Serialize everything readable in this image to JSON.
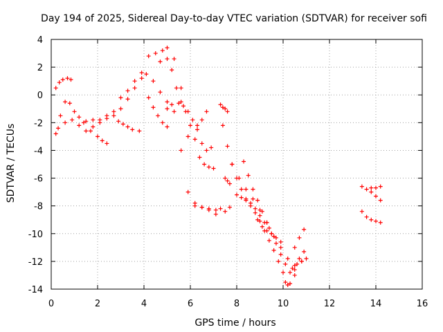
{
  "chart_data": {
    "type": "scatter",
    "title": "Day 194 of 2025, Sidereal Day-to-day VTEC variation (SDTVAR) for receiver sofi",
    "xlabel": "GPS time / hours",
    "ylabel": "SDTVAR / TECUs",
    "xlim": [
      0,
      16
    ],
    "ylim": [
      -14,
      4
    ],
    "xticks": [
      0,
      2,
      4,
      6,
      8,
      10,
      12,
      14,
      16
    ],
    "yticks": [
      -14,
      -12,
      -10,
      -8,
      -6,
      -4,
      -2,
      0,
      2,
      4
    ],
    "grid": true,
    "marker": "+",
    "color": "#ff0000",
    "series": [
      {
        "name": "s1",
        "x": [
          0.2,
          0.4,
          0.6,
          0.8,
          1.0,
          1.2,
          1.5,
          1.8,
          2.1,
          2.4,
          2.7,
          3.0,
          3.3,
          3.6,
          3.9,
          4.2,
          4.5,
          4.8,
          5.0,
          5.3,
          5.6,
          5.9,
          6.2,
          6.5,
          6.8,
          7.1
        ],
        "y": [
          -2.8,
          -1.5,
          -0.5,
          -0.6,
          -1.2,
          -1.6,
          -1.9,
          -1.8,
          -1.8,
          -1.5,
          -1.2,
          -0.2,
          0.3,
          1.0,
          1.6,
          2.8,
          3.0,
          3.2,
          3.4,
          2.6,
          0.5,
          -3.0,
          -7.8,
          -8.1,
          -8.3,
          -8.6
        ]
      },
      {
        "name": "s2",
        "x": [
          0.2,
          0.35,
          0.5,
          0.7,
          0.85
        ],
        "y": [
          0.5,
          0.9,
          1.1,
          1.2,
          1.1
        ]
      },
      {
        "name": "s3",
        "x": [
          0.3,
          0.6,
          0.9,
          1.2,
          1.5,
          1.8,
          2.1,
          2.4,
          2.7,
          3.0,
          3.3,
          3.6,
          3.9,
          4.1,
          4.4,
          4.7,
          5.0,
          5.3,
          5.6,
          5.9,
          6.2,
          6.5,
          6.8,
          7.1
        ],
        "y": [
          -2.4,
          -2.0,
          -1.8,
          -2.2,
          -2.6,
          -2.3,
          -2.0,
          -1.7,
          -1.5,
          -1.0,
          -0.3,
          0.5,
          1.2,
          1.5,
          1.0,
          0.2,
          -0.5,
          -1.2,
          -4.0,
          -7.0,
          -8.0,
          -8.1,
          -8.2,
          -8.3
        ]
      },
      {
        "name": "s4",
        "x": [
          1.4,
          1.7,
          2.0,
          2.2,
          2.4
        ],
        "y": [
          -2.0,
          -2.6,
          -3.0,
          -3.3,
          -3.5
        ]
      },
      {
        "name": "s5",
        "x": [
          2.9,
          3.1,
          3.3,
          3.5,
          3.8
        ],
        "y": [
          -1.9,
          -2.1,
          -2.3,
          -2.5,
          -2.6
        ]
      },
      {
        "name": "s6",
        "x": [
          4.2,
          4.4,
          4.6,
          4.8,
          5.0
        ],
        "y": [
          -0.2,
          -0.9,
          -1.5,
          -2.0,
          -2.3
        ]
      },
      {
        "name": "s7",
        "x": [
          4.7,
          5.0,
          5.2,
          5.4,
          5.6,
          5.8,
          6.0,
          6.2,
          6.4,
          6.6,
          6.8,
          7.0
        ],
        "y": [
          2.4,
          2.6,
          1.8,
          0.5,
          -0.5,
          -1.2,
          -2.2,
          -3.2,
          -4.5,
          -5.0,
          -5.2,
          -5.3
        ]
      },
      {
        "name": "s8",
        "x": [
          5.0,
          5.2,
          5.5,
          5.7,
          5.9,
          6.1,
          6.3,
          6.5,
          6.7,
          6.9
        ],
        "y": [
          -1.0,
          -0.7,
          -0.6,
          -0.8,
          -1.2,
          -1.8,
          -2.5,
          -3.5,
          -4.0,
          -3.8
        ]
      },
      {
        "name": "s9",
        "x": [
          6.3,
          6.5,
          6.7
        ],
        "y": [
          -2.2,
          -1.8,
          -1.2
        ]
      },
      {
        "name": "s10",
        "x": [
          7.3,
          7.4,
          7.5,
          7.6
        ],
        "y": [
          -0.7,
          -0.9,
          -1.0,
          -1.2
        ]
      },
      {
        "name": "s11",
        "x": [
          7.3,
          7.5,
          7.7
        ],
        "y": [
          -8.2,
          -8.4,
          -8.1
        ]
      },
      {
        "name": "s12",
        "x": [
          7.4,
          7.6,
          7.8,
          8.0,
          8.2,
          8.4,
          8.6,
          8.8,
          9.0,
          9.2,
          9.4,
          9.6,
          9.8,
          10.0,
          10.1,
          10.2,
          10.3,
          10.5,
          10.7,
          10.9
        ],
        "y": [
          -2.2,
          -3.7,
          -5.0,
          -6.0,
          -6.8,
          -7.5,
          -8.0,
          -8.5,
          -9.1,
          -9.8,
          -10.5,
          -11.2,
          -12.0,
          -12.8,
          -13.5,
          -13.7,
          -13.6,
          -12.6,
          -11.8,
          -11.3
        ]
      },
      {
        "name": "s13",
        "x": [
          7.5,
          7.6,
          7.7
        ],
        "y": [
          -6.0,
          -6.2,
          -6.4
        ]
      },
      {
        "name": "s14",
        "x": [
          7.8,
          8.1,
          8.4,
          8.7,
          9.0,
          9.3,
          9.6,
          9.9,
          10.2,
          10.5,
          10.8
        ],
        "y": [
          -5.0,
          -6.0,
          -6.8,
          -7.5,
          -8.3,
          -9.2,
          -10.2,
          -11.0,
          -11.8,
          -12.3,
          -12.0
        ]
      },
      {
        "name": "s15",
        "x": [
          8.0,
          8.2,
          8.4,
          8.6,
          8.8,
          9.0,
          9.2,
          9.4,
          9.6
        ],
        "y": [
          -7.2,
          -7.4,
          -7.6,
          -7.8,
          -8.2,
          -8.7,
          -9.2,
          -9.6,
          -10.2
        ]
      },
      {
        "name": "s16",
        "x": [
          8.3,
          8.5,
          8.7,
          8.9,
          9.1,
          9.3,
          9.5,
          9.7,
          9.9,
          10.1,
          10.3,
          10.5
        ],
        "y": [
          -4.8,
          -5.8,
          -6.8,
          -7.6,
          -8.4,
          -9.2,
          -10.0,
          -10.7,
          -11.5,
          -12.2,
          -12.8,
          -13.0
        ]
      },
      {
        "name": "s17",
        "x": [
          8.9,
          9.1,
          9.3,
          9.5,
          9.7,
          9.9
        ],
        "y": [
          -9.0,
          -9.5,
          -9.8,
          -10.0,
          -10.3,
          -10.6
        ]
      },
      {
        "name": "s18",
        "x": [
          10.4,
          10.6,
          10.8,
          11.0
        ],
        "y": [
          -12.5,
          -12.2,
          -12.0,
          -11.8
        ]
      },
      {
        "name": "s19",
        "x": [
          10.5,
          10.7,
          10.9
        ],
        "y": [
          -11.0,
          -10.3,
          -9.7
        ]
      },
      {
        "name": "s20",
        "x": [
          13.4,
          13.6,
          13.8,
          14.0,
          14.2
        ],
        "y": [
          -6.6,
          -6.8,
          -6.7,
          -6.7,
          -6.6
        ]
      },
      {
        "name": "s21",
        "x": [
          13.8,
          14.0,
          14.2
        ],
        "y": [
          -7.0,
          -7.3,
          -7.6
        ]
      },
      {
        "name": "s22",
        "x": [
          13.4,
          13.6,
          13.8,
          14.0,
          14.2
        ],
        "y": [
          -8.4,
          -8.8,
          -9.0,
          -9.1,
          -9.2
        ]
      }
    ]
  }
}
